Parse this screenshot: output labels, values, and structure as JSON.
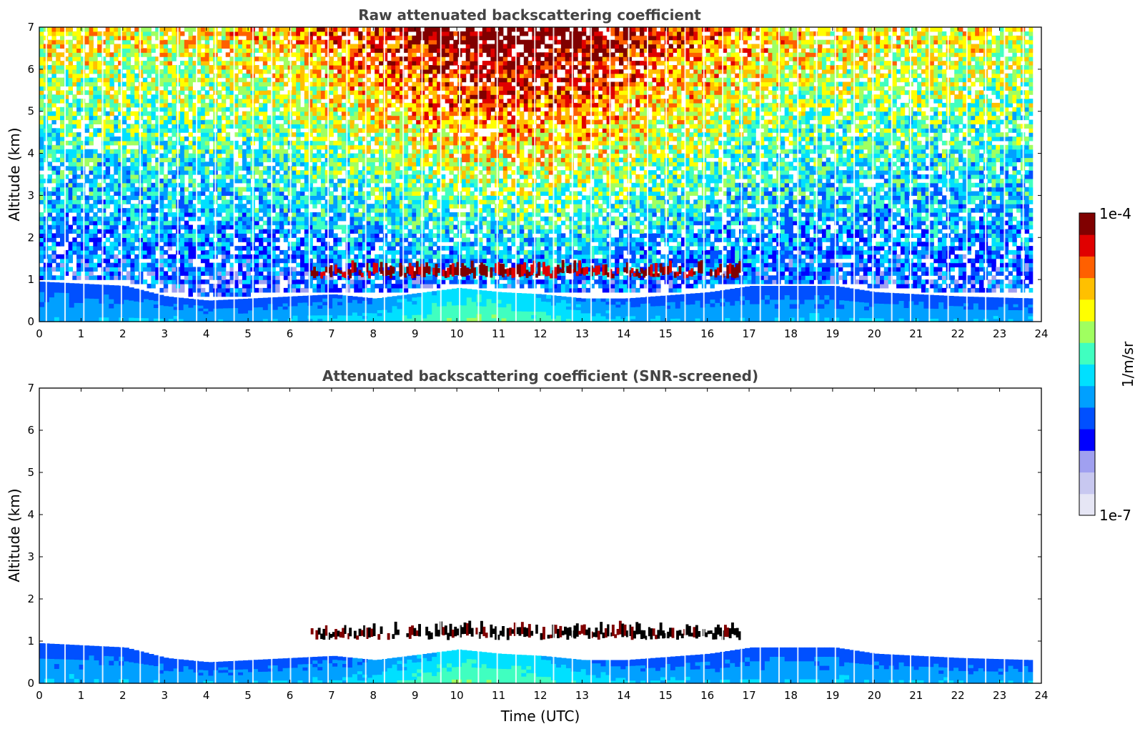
{
  "chart_data": [
    {
      "type": "heatmap",
      "title": "Raw attenuated backscattering coefficient",
      "xlabel": "",
      "ylabel": "Altitude (km)",
      "xlim": [
        0,
        24
      ],
      "ylim": [
        0,
        7
      ],
      "xticks": [
        "0",
        "1",
        "2",
        "3",
        "4",
        "5",
        "6",
        "7",
        "8",
        "9",
        "10",
        "11",
        "12",
        "13",
        "14",
        "15",
        "16",
        "17",
        "18",
        "19",
        "20",
        "21",
        "22",
        "23",
        "24"
      ],
      "yticks": [
        "0",
        "1",
        "2",
        "3",
        "4",
        "5",
        "6",
        "7"
      ],
      "boundary_layer_top_km": [
        {
          "t": 0,
          "z": 0.95
        },
        {
          "t": 2,
          "z": 0.85
        },
        {
          "t": 3,
          "z": 0.6
        },
        {
          "t": 4,
          "z": 0.5
        },
        {
          "t": 6,
          "z": 0.6
        },
        {
          "t": 7,
          "z": 0.65
        },
        {
          "t": 8,
          "z": 0.55
        },
        {
          "t": 10,
          "z": 0.8
        },
        {
          "t": 11,
          "z": 0.7
        },
        {
          "t": 12,
          "z": 0.65
        },
        {
          "t": 13,
          "z": 0.55
        },
        {
          "t": 14,
          "z": 0.55
        },
        {
          "t": 16,
          "z": 0.7
        },
        {
          "t": 17,
          "z": 0.85
        },
        {
          "t": 19,
          "z": 0.85
        },
        {
          "t": 20,
          "z": 0.7
        },
        {
          "t": 22,
          "z": 0.6
        },
        {
          "t": 23.8,
          "z": 0.55
        }
      ],
      "cloud_layer": {
        "t_start": 6.5,
        "t_end": 16.8,
        "base_km": 1.1,
        "top_km": 1.5
      },
      "noise": "increasing with altitude; strongest between 7 and 16 UTC"
    },
    {
      "type": "heatmap",
      "title": "Attenuated backscattering coefficient (SNR-screened)",
      "xlabel": "Time (UTC)",
      "ylabel": "Altitude (km)",
      "xlim": [
        0,
        24
      ],
      "ylim": [
        0,
        7
      ],
      "xticks": [
        "0",
        "1",
        "2",
        "3",
        "4",
        "5",
        "6",
        "7",
        "8",
        "9",
        "10",
        "11",
        "12",
        "13",
        "14",
        "15",
        "16",
        "17",
        "18",
        "19",
        "20",
        "21",
        "22",
        "23",
        "24"
      ],
      "yticks": [
        "0",
        "1",
        "2",
        "3",
        "4",
        "5",
        "6",
        "7"
      ],
      "cloud_layer": {
        "t_start": 6.5,
        "t_end": 16.8,
        "base_km": 1.1,
        "top_km": 1.5
      }
    }
  ],
  "colorbar": {
    "max_label": "1e-4",
    "min_label": "1e-7",
    "units_label": "1/m/sr",
    "colors": [
      "#e6e6f5",
      "#c8c8f0",
      "#a0a0f0",
      "#0000ff",
      "#0050ff",
      "#00a0ff",
      "#00e0ff",
      "#40ffc0",
      "#a0ff60",
      "#ffff00",
      "#ffc000",
      "#ff6000",
      "#e00000",
      "#800000"
    ]
  }
}
